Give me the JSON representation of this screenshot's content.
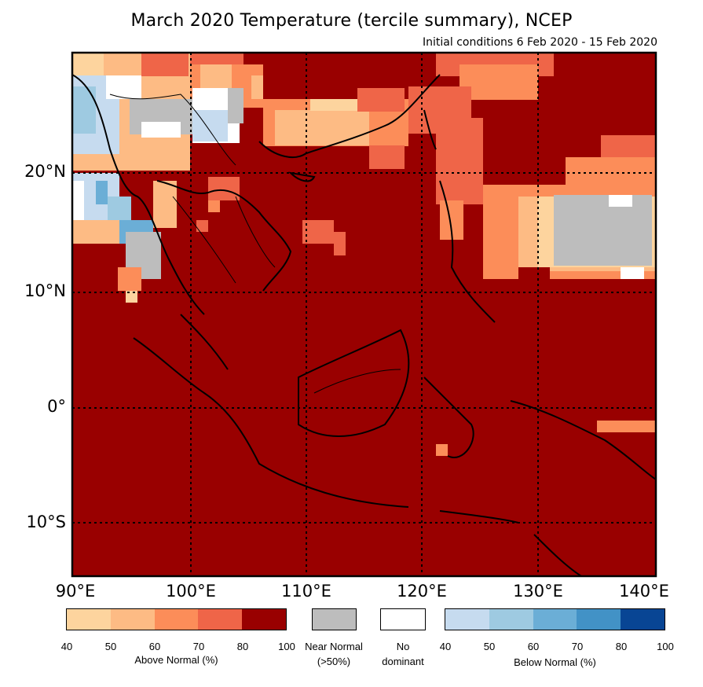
{
  "header": {
    "title": "March 2020 Temperature (tercile summary), NCEP",
    "subtitle": "Initial conditions 6 Feb 2020 - 15 Feb 2020"
  },
  "axes": {
    "lat_labels": [
      "20°N",
      "10°N",
      "0°",
      "10°S"
    ],
    "lon_labels": [
      "90°E",
      "100°E",
      "110°E",
      "120°E",
      "130°E",
      "140°E"
    ]
  },
  "colors": {
    "above": [
      "#fdd49e",
      "#fdbb84",
      "#fc8d59",
      "#ef6548",
      "#990000"
    ],
    "near_normal": "#bdbdbd",
    "no_dominant": "#ffffff",
    "below": [
      "#c6dbef",
      "#9ecae1",
      "#6baed6",
      "#4292c6",
      "#084594"
    ],
    "land_outline": "#000000",
    "gridline": "#000000"
  },
  "legend": {
    "above": {
      "ticks": [
        "40",
        "50",
        "60",
        "70",
        "80",
        "100"
      ],
      "label": "Above Normal (%)"
    },
    "near": {
      "label_line1": "Near Normal",
      "label_line2": "(>50%)"
    },
    "nodom": {
      "label_line1": "No",
      "label_line2": "dominant"
    },
    "below": {
      "ticks": [
        "40",
        "50",
        "60",
        "70",
        "80",
        "100"
      ],
      "label": "Below Normal (%)"
    }
  },
  "map_extent": {
    "lon_range": [
      90,
      140
    ],
    "lat_range": [
      -14,
      30
    ]
  },
  "map_data": {
    "dominant_field": "above normal (80-100%) over most of the domain",
    "regions": [
      {
        "area": "Myanmar / NE India",
        "category": "below normal 40-70% and near normal"
      },
      {
        "area": "Southern China coast",
        "category": "above normal 40-70%"
      },
      {
        "area": "Philippine Sea 13-20°N, 125-140°E",
        "category": "near normal, bordered by above normal 40-60%"
      },
      {
        "area": "East China Sea / Taiwan",
        "category": "above normal 60-80%"
      }
    ]
  }
}
